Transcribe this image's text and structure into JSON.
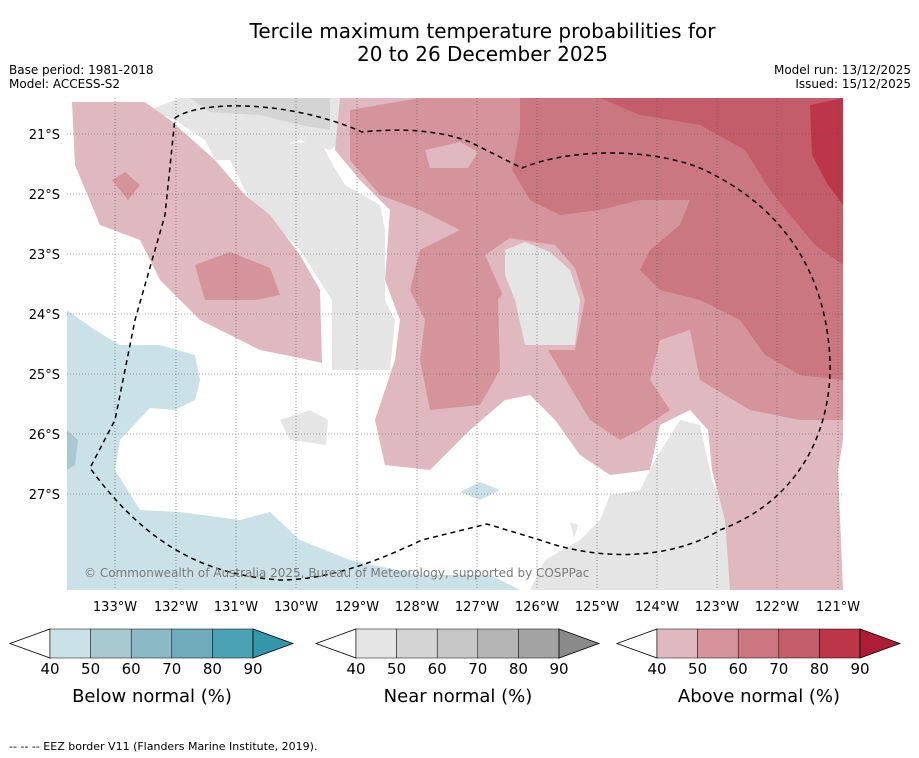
{
  "title_line1": "Tercile maximum temperature probabilities for",
  "title_line2": "20 to 26 December 2025",
  "base_period": "Base period: 1981-2018",
  "model": "Model: ACCESS-S2",
  "model_run": "Model run: 13/12/2025",
  "issued": "Issued: 15/12/2025",
  "copyright": "© Commonwealth of Australia 2025, Bureau of Meteorology, supported by COSPPac",
  "lat_labels": [
    "21°S",
    "22°S",
    "23°S",
    "24°S",
    "25°S",
    "26°S",
    "27°S"
  ],
  "lon_labels": [
    "133°W",
    "132°W",
    "131°W",
    "130°W",
    "129°W",
    "128°W",
    "127°W",
    "126°W",
    "125°W",
    "124°W",
    "123°W",
    "122°W",
    "121°W"
  ],
  "colorbars": [
    {
      "label": "Below normal (%)",
      "ticks": [
        "40",
        "50",
        "60",
        "70",
        "80",
        "90"
      ],
      "colors": [
        "#cbe1e8",
        "#a9c9d1",
        "#8cb9c6",
        "#6eacbc",
        "#4ba2b4",
        "#3596a9"
      ]
    },
    {
      "label": "Near normal (%)",
      "ticks": [
        "40",
        "50",
        "60",
        "70",
        "80",
        "90"
      ],
      "colors": [
        "#e5e5e5",
        "#d4d4d4",
        "#c7c7c7",
        "#b5b5b5",
        "#a3a3a3",
        "#8a8a8a"
      ]
    },
    {
      "label": "Above normal (%)",
      "ticks": [
        "40",
        "50",
        "60",
        "70",
        "80",
        "90"
      ],
      "colors": [
        "#e0b8bf",
        "#d5939c",
        "#cb7781",
        "#c45d6a",
        "#bc3549",
        "#ad1d35"
      ]
    }
  ],
  "footer": "--  --  -- EEZ border V11 (Flanders Marine Institute, 2019)."
}
